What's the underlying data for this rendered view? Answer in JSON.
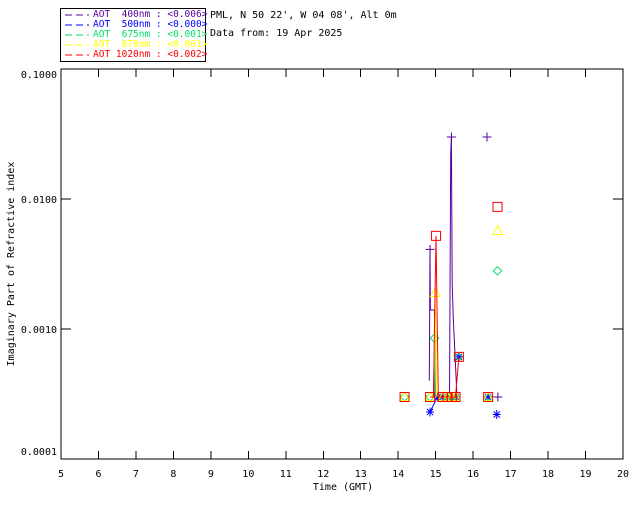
{
  "header": {
    "station_line": "PML, N 50 22', W 04 08', Alt 0m",
    "date_line": "Data from: 19 Apr 2025"
  },
  "legend": {
    "entries": [
      {
        "series": "AOT 400nm",
        "value": "<0.006>",
        "label": "AOT  400nm : <0.006>",
        "color": "#5500a0"
      },
      {
        "series": "AOT 500nm",
        "value": "<0.000>",
        "label": "AOT  500nm : <0.000>",
        "color": "#0000ff"
      },
      {
        "series": "AOT 675nm",
        "value": "<0.001>",
        "label": "AOT  675nm : <0.001>",
        "color": "#00e066"
      },
      {
        "series": "AOT 870nm",
        "value": "<0.001>",
        "label": "AOT  870nm : <0.001>",
        "color": "#ffff00"
      },
      {
        "series": "AOT 1020nm",
        "value": "<0.002>",
        "label": "AOT 1020nm : <0.002>",
        "color": "#ff0000"
      }
    ]
  },
  "chart_data": {
    "type": "line",
    "title": "",
    "xlabel": "Time (GMT)",
    "ylabel": "Imaginary Part of Refractive index",
    "xlim": [
      5,
      20
    ],
    "ylim": [
      0.0001,
      0.1
    ],
    "ylog": true,
    "grid": false,
    "legend_position": "top-left-outside",
    "x_ticks": [
      {
        "value": 5,
        "label": "5"
      },
      {
        "value": 6,
        "label": "6"
      },
      {
        "value": 7,
        "label": "7"
      },
      {
        "value": 8,
        "label": "8"
      },
      {
        "value": 9,
        "label": "9"
      },
      {
        "value": 10,
        "label": "10"
      },
      {
        "value": 11,
        "label": "11"
      },
      {
        "value": 12,
        "label": "12"
      },
      {
        "value": 13,
        "label": "13"
      },
      {
        "value": 14,
        "label": "14"
      },
      {
        "value": 15,
        "label": "15"
      },
      {
        "value": 16,
        "label": "16"
      },
      {
        "value": 17,
        "label": "17"
      },
      {
        "value": 18,
        "label": "18"
      },
      {
        "value": 19,
        "label": "19"
      },
      {
        "value": 20,
        "label": "20"
      }
    ],
    "y_ticks": [
      {
        "value": 0.1,
        "label": "0.1000"
      },
      {
        "value": 0.01,
        "label": "0.0100"
      },
      {
        "value": 0.001,
        "label": "0.0010"
      },
      {
        "value": 0.0001,
        "label": "0.0001"
      }
    ],
    "series": [
      {
        "name": "AOT 400nm",
        "color": "#5500a0",
        "marker": "plus",
        "lines": [
          [
            [
              14.83,
              0.0004
            ],
            [
              14.85,
              0.0041
            ],
            [
              14.86,
              0.0014
            ],
            [
              14.97,
              0.0014
            ],
            [
              14.98,
              0.0003
            ]
          ],
          [
            [
              15.37,
              0.0003
            ],
            [
              15.4,
              0.022
            ],
            [
              15.42,
              0.03
            ],
            [
              15.44,
              0.0022
            ],
            [
              15.47,
              0.0012
            ],
            [
              15.57,
              0.0003
            ]
          ]
        ],
        "points": [
          [
            14.85,
            0.0041
          ],
          [
            15.42,
            0.03
          ],
          [
            16.37,
            0.03
          ],
          [
            16.66,
            0.0003
          ]
        ]
      },
      {
        "name": "AOT 500nm",
        "color": "#0000ff",
        "marker": "asterisk",
        "lines": [
          [
            [
              14.85,
              0.00023
            ],
            [
              15.05,
              0.0003
            ]
          ]
        ],
        "points": [
          [
            14.85,
            0.00023
          ],
          [
            15.05,
            0.0003
          ],
          [
            15.19,
            0.0003
          ],
          [
            15.32,
            0.0003
          ],
          [
            15.43,
            0.0003
          ],
          [
            15.53,
            0.0003
          ],
          [
            15.62,
            0.00061
          ],
          [
            16.4,
            0.0003
          ],
          [
            16.63,
            0.00022
          ]
        ]
      },
      {
        "name": "AOT 675nm",
        "color": "#00e066",
        "marker": "diamond",
        "lines": [
          [
            [
              14.94,
              0.0003
            ],
            [
              14.97,
              0.00085
            ],
            [
              15.0,
              0.0003
            ]
          ]
        ],
        "points": [
          [
            14.17,
            0.0003
          ],
          [
            14.85,
            0.0003
          ],
          [
            14.97,
            0.00085
          ],
          [
            15.19,
            0.0003
          ],
          [
            15.32,
            0.0003
          ],
          [
            15.43,
            0.0003
          ],
          [
            15.53,
            0.0003
          ],
          [
            15.62,
            0.00061
          ],
          [
            16.4,
            0.0003
          ],
          [
            16.65,
            0.0028
          ]
        ]
      },
      {
        "name": "AOT 870nm",
        "color": "#ffff00",
        "marker": "triangle",
        "lines": [
          [
            [
              14.95,
              0.0003
            ],
            [
              14.99,
              0.0019
            ],
            [
              15.03,
              0.0003
            ]
          ]
        ],
        "points": [
          [
            14.17,
            0.0003
          ],
          [
            14.85,
            0.0003
          ],
          [
            14.99,
            0.0019
          ],
          [
            15.19,
            0.0003
          ],
          [
            15.32,
            0.0003
          ],
          [
            15.43,
            0.0003
          ],
          [
            15.53,
            0.0003
          ],
          [
            16.4,
            0.0003
          ],
          [
            16.66,
            0.0057
          ]
        ]
      },
      {
        "name": "AOT 1020nm",
        "color": "#ff0000",
        "marker": "square",
        "lines": [
          [
            [
              14.85,
              0.0003
            ],
            [
              14.94,
              0.0003
            ],
            [
              15.01,
              0.0052
            ],
            [
              15.07,
              0.0003
            ],
            [
              15.53,
              0.0003
            ],
            [
              15.62,
              0.00061
            ]
          ]
        ],
        "points": [
          [
            14.17,
            0.0003
          ],
          [
            14.85,
            0.0003
          ],
          [
            15.01,
            0.0052
          ],
          [
            15.19,
            0.0003
          ],
          [
            15.32,
            0.0003
          ],
          [
            15.43,
            0.0003
          ],
          [
            15.53,
            0.0003
          ],
          [
            15.62,
            0.00061
          ],
          [
            16.4,
            0.0003
          ],
          [
            16.65,
            0.0087
          ]
        ]
      }
    ]
  }
}
